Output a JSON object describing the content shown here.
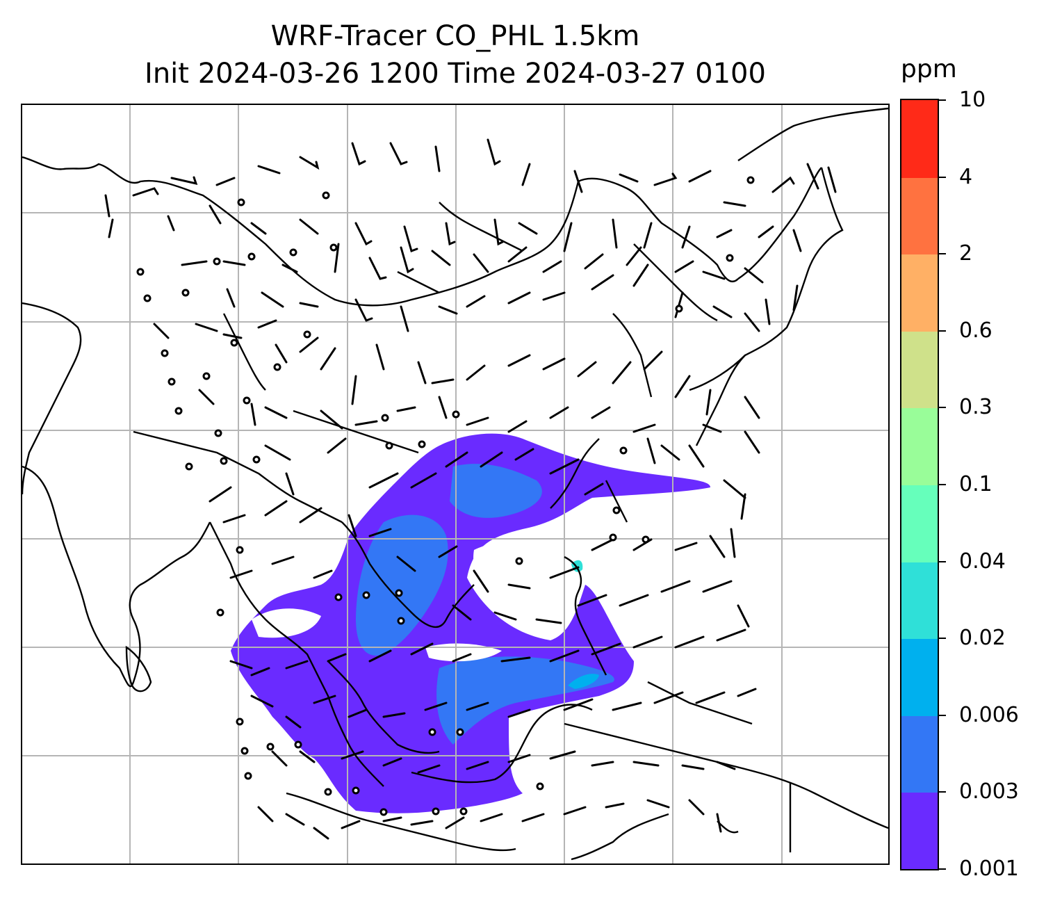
{
  "title": {
    "line1": "WRF-Tracer CO_PHL 1.5km",
    "line2": "Init 2024-03-26 1200 Time 2024-03-27 0100"
  },
  "colorbar": {
    "unit": "ppm",
    "ticks": [
      "0.001",
      "0.003",
      "0.006",
      "0.02",
      "0.04",
      "0.1",
      "0.3",
      "0.6",
      "2",
      "4",
      "10"
    ],
    "colors": [
      "#6a2bff",
      "#3377f5",
      "#00b0ee",
      "#2fe0d8",
      "#66ffbb",
      "#99fd99",
      "#cfe18a",
      "#ffb065",
      "#ff7240",
      "#ff2a18"
    ]
  },
  "map": {
    "gridlines": true,
    "concentration_present_levels": [
      "0.001",
      "0.003",
      "0.006",
      "0.02"
    ],
    "wind_barbs": true,
    "coastlines": true
  }
}
